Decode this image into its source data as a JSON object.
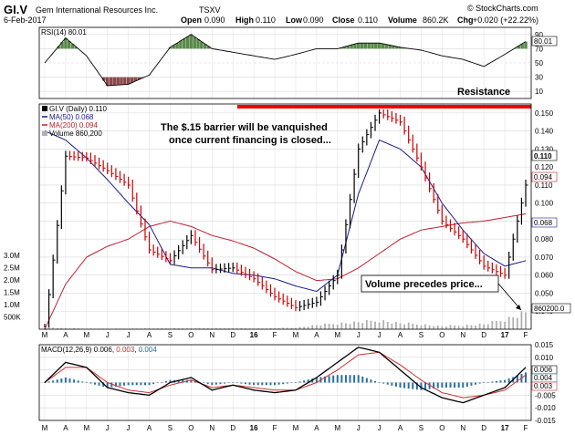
{
  "header": {
    "symbol": "GI.V",
    "company": "Gem International Resources Inc.",
    "exchange": "TSXV",
    "date": "6-Feb-2017",
    "watermark": "© StockCharts.com",
    "quote": {
      "open_label": "Open",
      "open": "0.090",
      "high_label": "High",
      "high": "0.110",
      "low_label": "Low",
      "low": "0.090",
      "close_label": "Close",
      "close": "0.110",
      "volume_label": "Volume",
      "volume": "860.2K",
      "chg_label": "Chg",
      "chg": "+0.020 (+22.22%)"
    }
  },
  "colors": {
    "price": "#000000",
    "down_bar": "#cc0000",
    "ma50": "#1a1a8c",
    "ma200": "#c02030",
    "volume": "#b0b0b0",
    "rsi_over": "#5a8a4a",
    "rsi_under": "#8a4a4a",
    "resistance": "#ee0000",
    "macd_hist": "#2a6fa0",
    "macd_line": "#000000",
    "signal_line": "#d03030"
  },
  "x_labels": [
    "M",
    "A",
    "M",
    "J",
    "J",
    "A",
    "S",
    "O",
    "N",
    "D",
    "16",
    "F",
    "M",
    "A",
    "M",
    "J",
    "J",
    "A",
    "S",
    "O",
    "N",
    "D",
    "17",
    "F"
  ],
  "rsi_panel": {
    "label": "RSI(14) 80.01",
    "value_tag": "80.01",
    "ticks": [
      "90",
      "70",
      "50",
      "30",
      "10"
    ],
    "resistance_label": "Resistance"
  },
  "price_panel": {
    "legend": {
      "title": "GI.V (Daily) 0.110",
      "ma50": "MA(50) 0.068",
      "ma200": "MA(200) 0.094",
      "volume": "Volume 860,200"
    },
    "ticks": [
      "0.150",
      "0.140",
      "0.130",
      "0.120",
      "0.110",
      "0.100",
      "0.090",
      "0.080",
      "0.070",
      "0.060",
      "0.050",
      "0.040"
    ],
    "tags": {
      "close": "0.110",
      "ma200": "0.094",
      "ma50": "0.068",
      "volume": "860200.0"
    },
    "volume_ticks": [
      "3.0M",
      "2.5M",
      "2.0M",
      "1.5M",
      "1.0M",
      "500K"
    ],
    "annotation_top": [
      "The $.15 barrier will be vanquished",
      "once current financing is closed..."
    ],
    "annotation_volume": "Volume precedes price..."
  },
  "macd_panel": {
    "label": "MACD(12,26,9) 0.006, 0.003, 0.004",
    "label_prefix": "MACD(12,26,9) 0.006, ",
    "label_signal": "0.003",
    "label_sep": ", ",
    "label_hist": "0.004",
    "ticks": [
      "0.015",
      "0.010",
      "0.005",
      "0.000",
      "-0.005",
      "-0.010",
      "-0.015"
    ],
    "tags": [
      "0.006",
      "0.004",
      "0.003"
    ]
  },
  "chart_data": {
    "type": "line",
    "title": "GI.V (Daily) 0.110",
    "x": [
      "M",
      "A",
      "M",
      "J",
      "J",
      "A",
      "S",
      "O",
      "N",
      "D",
      "16",
      "F",
      "M",
      "A",
      "M",
      "J",
      "J",
      "A",
      "S",
      "O",
      "N",
      "D",
      "17",
      "F"
    ],
    "ylim": [
      0.03,
      0.155
    ],
    "grid": true,
    "series": [
      {
        "name": "GI.V (Daily)",
        "values": [
          0.03,
          0.126,
          0.125,
          0.118,
          0.11,
          0.074,
          0.068,
          0.082,
          0.063,
          0.064,
          0.058,
          0.048,
          0.042,
          0.045,
          0.06,
          0.13,
          0.15,
          0.145,
          0.12,
          0.09,
          0.08,
          0.065,
          0.06,
          0.11
        ]
      },
      {
        "name": "MA(50)",
        "values": [
          0.14,
          0.135,
          0.125,
          0.113,
          0.1,
          0.088,
          0.066,
          0.064,
          0.064,
          0.061,
          0.06,
          0.058,
          0.054,
          0.051,
          0.06,
          0.105,
          0.135,
          0.13,
          0.12,
          0.1,
          0.085,
          0.072,
          0.065,
          0.068
        ]
      },
      {
        "name": "MA(200)",
        "values": [
          0.03,
          0.055,
          0.07,
          0.076,
          0.08,
          0.087,
          0.09,
          0.087,
          0.082,
          0.079,
          0.075,
          0.069,
          0.062,
          0.057,
          0.058,
          0.064,
          0.072,
          0.08,
          0.085,
          0.087,
          0.089,
          0.09,
          0.092,
          0.094
        ]
      }
    ],
    "rsi": {
      "name": "RSI(14)",
      "ylim": [
        0,
        100
      ],
      "values": [
        50,
        85,
        60,
        18,
        20,
        33,
        72,
        90,
        70,
        65,
        60,
        55,
        62,
        70,
        70,
        78,
        78,
        72,
        68,
        60,
        55,
        45,
        62,
        80
      ]
    },
    "volume": {
      "name": "Volume",
      "ylim": [
        0,
        3000000
      ],
      "values": [
        100000,
        50000,
        30000,
        20000,
        30000,
        40000,
        50000,
        50000,
        60000,
        50000,
        40000,
        50000,
        80000,
        200000,
        300000,
        350000,
        450000,
        300000,
        250000,
        150000,
        200000,
        250000,
        500000,
        860200
      ]
    },
    "macd": {
      "name": "MACD(12,26,9)",
      "ylim": [
        -0.015,
        0.015
      ],
      "macd": [
        0,
        0.008,
        0.006,
        -0.002,
        -0.004,
        -0.005,
        0.0,
        0.002,
        -0.003,
        -0.001,
        -0.003,
        -0.004,
        -0.003,
        0.002,
        0.008,
        0.014,
        0.012,
        0.005,
        -0.002,
        -0.006,
        -0.008,
        -0.005,
        -0.002,
        0.006
      ],
      "signal": [
        0,
        0.006,
        0.006,
        0.0,
        -0.003,
        -0.004,
        -0.001,
        0.001,
        -0.002,
        -0.001,
        -0.002,
        -0.003,
        -0.003,
        0.0,
        0.005,
        0.011,
        0.012,
        0.007,
        0.001,
        -0.004,
        -0.006,
        -0.005,
        -0.003,
        0.003
      ],
      "histogram": [
        0,
        0.002,
        0.0,
        -0.002,
        -0.001,
        -0.001,
        0.001,
        0.001,
        -0.001,
        0.0,
        -0.001,
        -0.001,
        0.0,
        0.002,
        0.003,
        0.003,
        0.0,
        -0.002,
        -0.003,
        -0.002,
        -0.002,
        0.0,
        0.001,
        0.004
      ]
    }
  }
}
